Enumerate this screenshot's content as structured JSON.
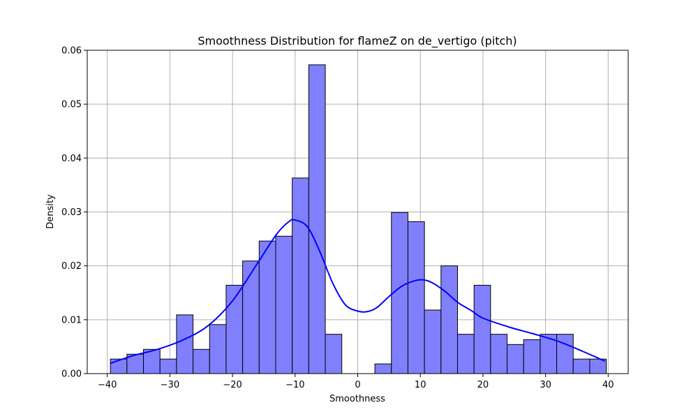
{
  "chart_data": {
    "type": "bar",
    "title": "Smoothness Distribution for flameZ on de_vertigo (pitch)",
    "xlabel": "Smoothness",
    "ylabel": "Density",
    "xlim": [
      -43.2,
      43.2
    ],
    "ylim": [
      0,
      0.06
    ],
    "xticks": [
      -40,
      -30,
      -20,
      -10,
      0,
      10,
      20,
      30,
      40
    ],
    "xtick_labels": [
      "−40",
      "−30",
      "−20",
      "−10",
      "0",
      "10",
      "20",
      "30",
      "40"
    ],
    "yticks": [
      0,
      0.01,
      0.02,
      0.03,
      0.04,
      0.05,
      0.06
    ],
    "ytick_labels": [
      "0.00",
      "0.01",
      "0.02",
      "0.03",
      "0.04",
      "0.05",
      "0.06"
    ],
    "grid": true,
    "bin_start": -39.5,
    "bin_width": 2.64,
    "bars": [
      0.0027,
      0.0036,
      0.0045,
      0.0027,
      0.0109,
      0.0045,
      0.0091,
      0.0164,
      0.0209,
      0.0246,
      0.0255,
      0.0363,
      0.0573,
      0.0073,
      0,
      0,
      0.0018,
      0.0299,
      0.0282,
      0.0118,
      0.02,
      0.0073,
      0.0164,
      0.0073,
      0.0054,
      0.0063,
      0.0073,
      0.0073,
      0.0027,
      0.0027
    ],
    "bar_color": "#8080ff",
    "bar_edge_color": "#000000",
    "kde": {
      "x": [
        -39.5,
        -36,
        -32,
        -28,
        -24,
        -20,
        -16,
        -13,
        -11,
        -10,
        -8,
        -6,
        -4,
        -2,
        0,
        1.5,
        3,
        5,
        7,
        9,
        10.5,
        12,
        14,
        16,
        18,
        20,
        24,
        28,
        32,
        36,
        39.5
      ],
      "y": [
        0.0019,
        0.0033,
        0.0045,
        0.0062,
        0.0088,
        0.0135,
        0.0205,
        0.0258,
        0.0282,
        0.0285,
        0.0272,
        0.0225,
        0.0168,
        0.0128,
        0.0116,
        0.0115,
        0.0122,
        0.0143,
        0.0162,
        0.0172,
        0.0174,
        0.0168,
        0.0152,
        0.0132,
        0.0118,
        0.0103,
        0.0087,
        0.0074,
        0.006,
        0.0041,
        0.0023
      ],
      "color": "#0000ff"
    }
  }
}
